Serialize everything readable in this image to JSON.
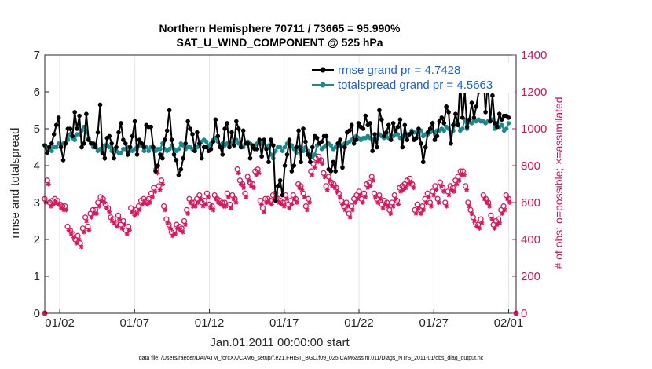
{
  "chart_data": {
    "type": "line",
    "title": "Northern Hemisphere 70711 / 73665 = 95.990%",
    "subtitle": "SAT_U_WIND_COMPONENT @ 525 hPa",
    "ylabel": "rmse and totalspread",
    "y2label": "# of obs: o=possible; ×=assimilated",
    "xlabel": "Jan.01,2011 00:00:00 start",
    "footnote": "data file: /Users/raeder/DAI/ATM_forcXX/CAM6_setup/f.e21.FHIST_BGC.f09_025.CAM6assim.011/Diags_NTrS_2011-01/obs_diag_output.nc",
    "xlim": [
      0,
      31.5
    ],
    "ylim": [
      0,
      7
    ],
    "y2lim": [
      0,
      1400
    ],
    "x_ticks": [
      "01/02",
      "01/07",
      "01/12",
      "01/17",
      "01/22",
      "01/27",
      "02/01"
    ],
    "y_ticks": [
      "0",
      "1",
      "2",
      "3",
      "4",
      "5",
      "6",
      "7"
    ],
    "y2_ticks": [
      "0",
      "200",
      "400",
      "600",
      "800",
      "1000",
      "1200",
      "1400"
    ],
    "legend": [
      "rmse grand pr = 4.7428",
      "totalspread grand pr = 4.5663"
    ],
    "legend_position": "top-right",
    "colors": {
      "rmse": "#000000",
      "spread": "#1b8a8c",
      "obs": "#d6195f",
      "legend_text": "#1a5fd6"
    },
    "series": [
      {
        "name": "rmse grand pr = 4.7428",
        "values": [
          4.55,
          4.35,
          4.5,
          4.6,
          4.85,
          5.1,
          5.3,
          4.5,
          4.15,
          4.6,
          5.0,
          5.0,
          4.8,
          5.45,
          5.0,
          5.35,
          4.5,
          4.6,
          5.4,
          4.7,
          4.6,
          4.6,
          4.5,
          4.9,
          5.65,
          4.35,
          4.2,
          4.75,
          4.8,
          4.6,
          4.2,
          4.5,
          4.9,
          5.15,
          4.7,
          4.6,
          4.3,
          4.5,
          4.8,
          5.2,
          4.3,
          4.7,
          4.6,
          4.5,
          5.1,
          5.05,
          5.05,
          4.5,
          3.85,
          4.0,
          4.3,
          4.2,
          4.7,
          4.95,
          5.5,
          4.7,
          4.3,
          4.15,
          3.75,
          3.9,
          4.2,
          4.6,
          5.2,
          5.0,
          4.85,
          4.4,
          4.9,
          4.6,
          4.2,
          4.5,
          4.5,
          4.4,
          4.45,
          4.65,
          5.25,
          4.8,
          4.5,
          4.3,
          5.0,
          5.15,
          4.5,
          4.9,
          4.55,
          5.2,
          5.0,
          4.5,
          4.95,
          4.6,
          4.6,
          4.2,
          4.55,
          4.45,
          4.45,
          4.7,
          4.25,
          4.7,
          4.45,
          4.1,
          4.7,
          4.55,
          3.05,
          3.45,
          3.6,
          3.2,
          4.0,
          4.3,
          4.7,
          3.85,
          4.0,
          4.5,
          4.95,
          4.1,
          5.0,
          4.65,
          4.3,
          4.1,
          4.5,
          4.8,
          4.75,
          4.6,
          4.65,
          4.8,
          4.8,
          3.9,
          3.85,
          4.1,
          3.85,
          4.6,
          4.7,
          3.95,
          4.5,
          4.9,
          4.95,
          5.1,
          4.6,
          4.7,
          5.15,
          5.05,
          5.0,
          5.35,
          5.1,
          5.15,
          4.4,
          4.85,
          4.5,
          5.5,
          5.25,
          4.8,
          4.9,
          5.1,
          4.7,
          5.15,
          4.95,
          5.05,
          5.25,
          4.5,
          5.1,
          4.7,
          4.85,
          4.9,
          4.7,
          4.75,
          5.0,
          4.6,
          4.1,
          4.5,
          4.9,
          5.0,
          5.15,
          4.7,
          4.8,
          5.2,
          5.3,
          5.15,
          5.6,
          5.45,
          4.6,
          5.1,
          5.4,
          5.1,
          6.3,
          5.3,
          6.0,
          5.05,
          5.25,
          5.7,
          5.3,
          5.6,
          6.0,
          6.7,
          6.55,
          5.45,
          6.3,
          5.2,
          5.9,
          5.15,
          5.05,
          5.4,
          5.25,
          5.35,
          5.35,
          5.3
        ]
      },
      {
        "name": "totalspread grand pr = 4.5663",
        "values": [
          4.55,
          4.5,
          4.45,
          4.4,
          4.5,
          4.5,
          4.6,
          4.55,
          4.6,
          4.6,
          4.7,
          4.85,
          4.75,
          4.7,
          4.85,
          4.85,
          4.95,
          5.05,
          4.95,
          4.75,
          4.6,
          4.5,
          4.55,
          4.4,
          4.45,
          4.45,
          4.55,
          4.55,
          4.5,
          4.4,
          4.45,
          4.4,
          4.35,
          4.35,
          4.45,
          4.45,
          4.5,
          4.4,
          4.4,
          4.45,
          4.5,
          4.55,
          4.55,
          4.4,
          4.5,
          4.4,
          4.5,
          4.45,
          4.4,
          4.45,
          4.45,
          4.6,
          4.45,
          4.4,
          4.45,
          4.55,
          4.45,
          4.4,
          4.45,
          4.6,
          4.55,
          4.45,
          4.5,
          4.5,
          4.45,
          4.45,
          4.5,
          4.55,
          4.65,
          4.7,
          4.65,
          4.55,
          4.6,
          4.7,
          4.75,
          4.65,
          4.55,
          4.6,
          4.55,
          4.6,
          4.55,
          4.6,
          4.65,
          4.7,
          4.6,
          4.55,
          4.5,
          4.6,
          4.65,
          4.6,
          4.5,
          4.55,
          4.6,
          4.65,
          4.6,
          4.6,
          4.5,
          4.55,
          4.3,
          4.2,
          4.4,
          4.5,
          4.5,
          4.4,
          4.5,
          4.6,
          4.6,
          4.55,
          4.45,
          4.35,
          4.5,
          4.5,
          4.4,
          4.5,
          4.4,
          4.3,
          4.25,
          4.3,
          4.55,
          4.6,
          4.45,
          4.5,
          4.55,
          4.6,
          4.55,
          4.45,
          4.5,
          4.55,
          4.55,
          4.55,
          4.6,
          4.6,
          4.65,
          4.7,
          4.75,
          4.8,
          4.75,
          4.7,
          4.75,
          4.75,
          4.8,
          4.75,
          4.7,
          4.75,
          4.75,
          4.85,
          4.8,
          4.75,
          4.85,
          4.75,
          4.8,
          4.8,
          4.85,
          4.85,
          4.75,
          4.8,
          4.8,
          4.85,
          4.85,
          4.95,
          4.9,
          4.9,
          4.85,
          4.95,
          4.8,
          4.85,
          4.85,
          4.9,
          4.95,
          4.9,
          4.95,
          4.95,
          5.0,
          4.95,
          5.05,
          5.0,
          4.9,
          4.95,
          5.15,
          5.15,
          4.95,
          5.0,
          5.25,
          5.0,
          5.2,
          5.15,
          5.25,
          5.2,
          5.25,
          5.2,
          5.2,
          5.15,
          5.2,
          5.2,
          5.25,
          5.0,
          5.15,
          5.05,
          5.1,
          4.95,
          5.0,
          5.15
        ]
      },
      {
        "name": "possible",
        "values": [
          620,
          720,
          600,
          610,
          620,
          610,
          590,
          580,
          580,
          470,
          450,
          430,
          400,
          420,
          380,
          460,
          520,
          470,
          540,
          560,
          560,
          600,
          630,
          620,
          590,
          570,
          520,
          510,
          490,
          530,
          480,
          500,
          450,
          470,
          570,
          550,
          560,
          580,
          610,
          620,
          610,
          620,
          650,
          680,
          780,
          690,
          720,
          580,
          510,
          480,
          440,
          450,
          480,
          470,
          460,
          500,
          560,
          620,
          600,
          600,
          620,
          640,
          600,
          610,
          650,
          590,
          580,
          640,
          620,
          610,
          600,
          600,
          650,
          590,
          640,
          620,
          780,
          720,
          700,
          650,
          740,
          710,
          700,
          770,
          780,
          610,
          570,
          620,
          620,
          610,
          640,
          650,
          620,
          610,
          600,
          640,
          590,
          610,
          640,
          620,
          700,
          690,
          650,
          580,
          620,
          770,
          810,
          840,
          850,
          830,
          760,
          690,
          740,
          710,
          700,
          680,
          650,
          610,
          580,
          600,
          540,
          580,
          620,
          640,
          660,
          620,
          650,
          700,
          710,
          740,
          650,
          620,
          640,
          590,
          610,
          600,
          560,
          600,
          640,
          610,
          680,
          690,
          700,
          720,
          730,
          700,
          560,
          590,
          560,
          580,
          620,
          650,
          600,
          660,
          690,
          620,
          710,
          680,
          600,
          660,
          690,
          680,
          720,
          740,
          770,
          770,
          690,
          600,
          560,
          520,
          490,
          480,
          510,
          640,
          620,
          600,
          530,
          480,
          500,
          510,
          560,
          580,
          640,
          620
        ]
      },
      {
        "name": "assimilated",
        "values": [
          600,
          700,
          580,
          590,
          600,
          590,
          570,
          560,
          560,
          450,
          430,
          410,
          380,
          400,
          360,
          440,
          500,
          450,
          520,
          540,
          540,
          580,
          610,
          600,
          570,
          550,
          500,
          490,
          470,
          510,
          460,
          480,
          430,
          450,
          550,
          530,
          540,
          560,
          590,
          600,
          590,
          600,
          630,
          660,
          760,
          670,
          700,
          560,
          490,
          460,
          420,
          430,
          460,
          450,
          440,
          480,
          540,
          600,
          580,
          580,
          600,
          620,
          580,
          590,
          630,
          570,
          560,
          620,
          600,
          590,
          580,
          580,
          630,
          570,
          620,
          600,
          760,
          700,
          680,
          630,
          720,
          690,
          680,
          750,
          760,
          590,
          550,
          600,
          600,
          590,
          620,
          630,
          600,
          590,
          580,
          620,
          570,
          590,
          620,
          600,
          680,
          670,
          630,
          560,
          600,
          750,
          790,
          820,
          830,
          810,
          740,
          670,
          720,
          690,
          680,
          660,
          630,
          590,
          560,
          580,
          520,
          560,
          600,
          620,
          640,
          600,
          630,
          680,
          690,
          720,
          630,
          600,
          620,
          570,
          590,
          580,
          540,
          580,
          620,
          590,
          660,
          670,
          680,
          700,
          710,
          680,
          540,
          570,
          540,
          560,
          600,
          630,
          580,
          640,
          670,
          600,
          690,
          660,
          580,
          640,
          670,
          660,
          700,
          720,
          750,
          750,
          670,
          580,
          540,
          500,
          470,
          460,
          490,
          620,
          600,
          580,
          510,
          460,
          480,
          490,
          540,
          560,
          620,
          600
        ]
      }
    ]
  }
}
